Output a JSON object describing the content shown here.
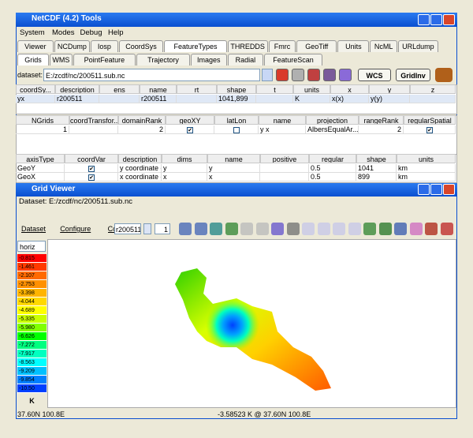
{
  "window": {
    "title": "NetCDF (4.2) Tools",
    "menu": [
      "System",
      "Modes",
      "Debug",
      "Help"
    ],
    "tabs": [
      "Viewer",
      "NCDump",
      "Iosp",
      "CoordSys",
      "FeatureTypes",
      "THREDDS",
      "Fmrc",
      "GeoTiff",
      "Units",
      "NcML",
      "URLdump"
    ],
    "subtabs": [
      "Grids",
      "WMS",
      "PointFeature",
      "Trajectory",
      "Images",
      "Radial",
      "FeatureScan"
    ],
    "dataset_label": "dataset:",
    "dataset": "E:/zcdf/nc/200511.sub.nc",
    "buttons": [
      "WCS",
      "GridInv"
    ]
  },
  "grids_table": {
    "columns": [
      "coordSy...",
      "description",
      "ens",
      "name",
      "rt",
      "shape",
      "t",
      "units",
      "x",
      "y",
      "z"
    ],
    "rows": [
      [
        "yx",
        "r200511",
        null,
        "r200511",
        null,
        "1041,899",
        null,
        "K",
        "x(x)",
        "y(y)",
        null
      ]
    ]
  },
  "coordsys_table": {
    "columns": [
      "NGrids",
      "coordTransfor...",
      "domainRank",
      "geoXY",
      "latLon",
      "name",
      "projection",
      "rangeRank",
      "regularSpatial"
    ],
    "rows": [
      [
        1,
        null,
        2,
        true,
        false,
        "y x",
        "AlbersEqualAr...",
        2,
        true
      ]
    ]
  },
  "axes_table": {
    "columns": [
      "axisType",
      "coordVar",
      "description",
      "dims",
      "name",
      "positive",
      "regular",
      "shape",
      "units"
    ],
    "rows": [
      [
        "GeoY",
        true,
        "y coordinate of...",
        "y",
        "y",
        null,
        "0.5",
        "1041",
        "km"
      ],
      [
        "GeoX",
        true,
        "x coordinate of...",
        "x",
        "x",
        null,
        "0.5",
        "899",
        "km"
      ]
    ]
  },
  "grid_viewer": {
    "title": "Grid Viewer",
    "dataset": "Dataset: E:/zcdf/nc/200511.sub.nc",
    "menu": [
      "Dataset",
      "Configure",
      "Controls"
    ],
    "field": "r200511",
    "level": "1",
    "projection": "horiz",
    "colorbar_labels": [
      "-0.815",
      "-1.461",
      "-2.107",
      "-2.753",
      "-3.398",
      "-4.044",
      "-4.689",
      "-5.335",
      "-5.980",
      "-6.626",
      "-7.272",
      "-7.917",
      "-8.563",
      "-9.209",
      "-9.854",
      "-10.50"
    ],
    "unit": "K",
    "status_left": "37.60N 100.8E",
    "status_right": "-3.58523 K @ 37.60N 100.8E"
  }
}
